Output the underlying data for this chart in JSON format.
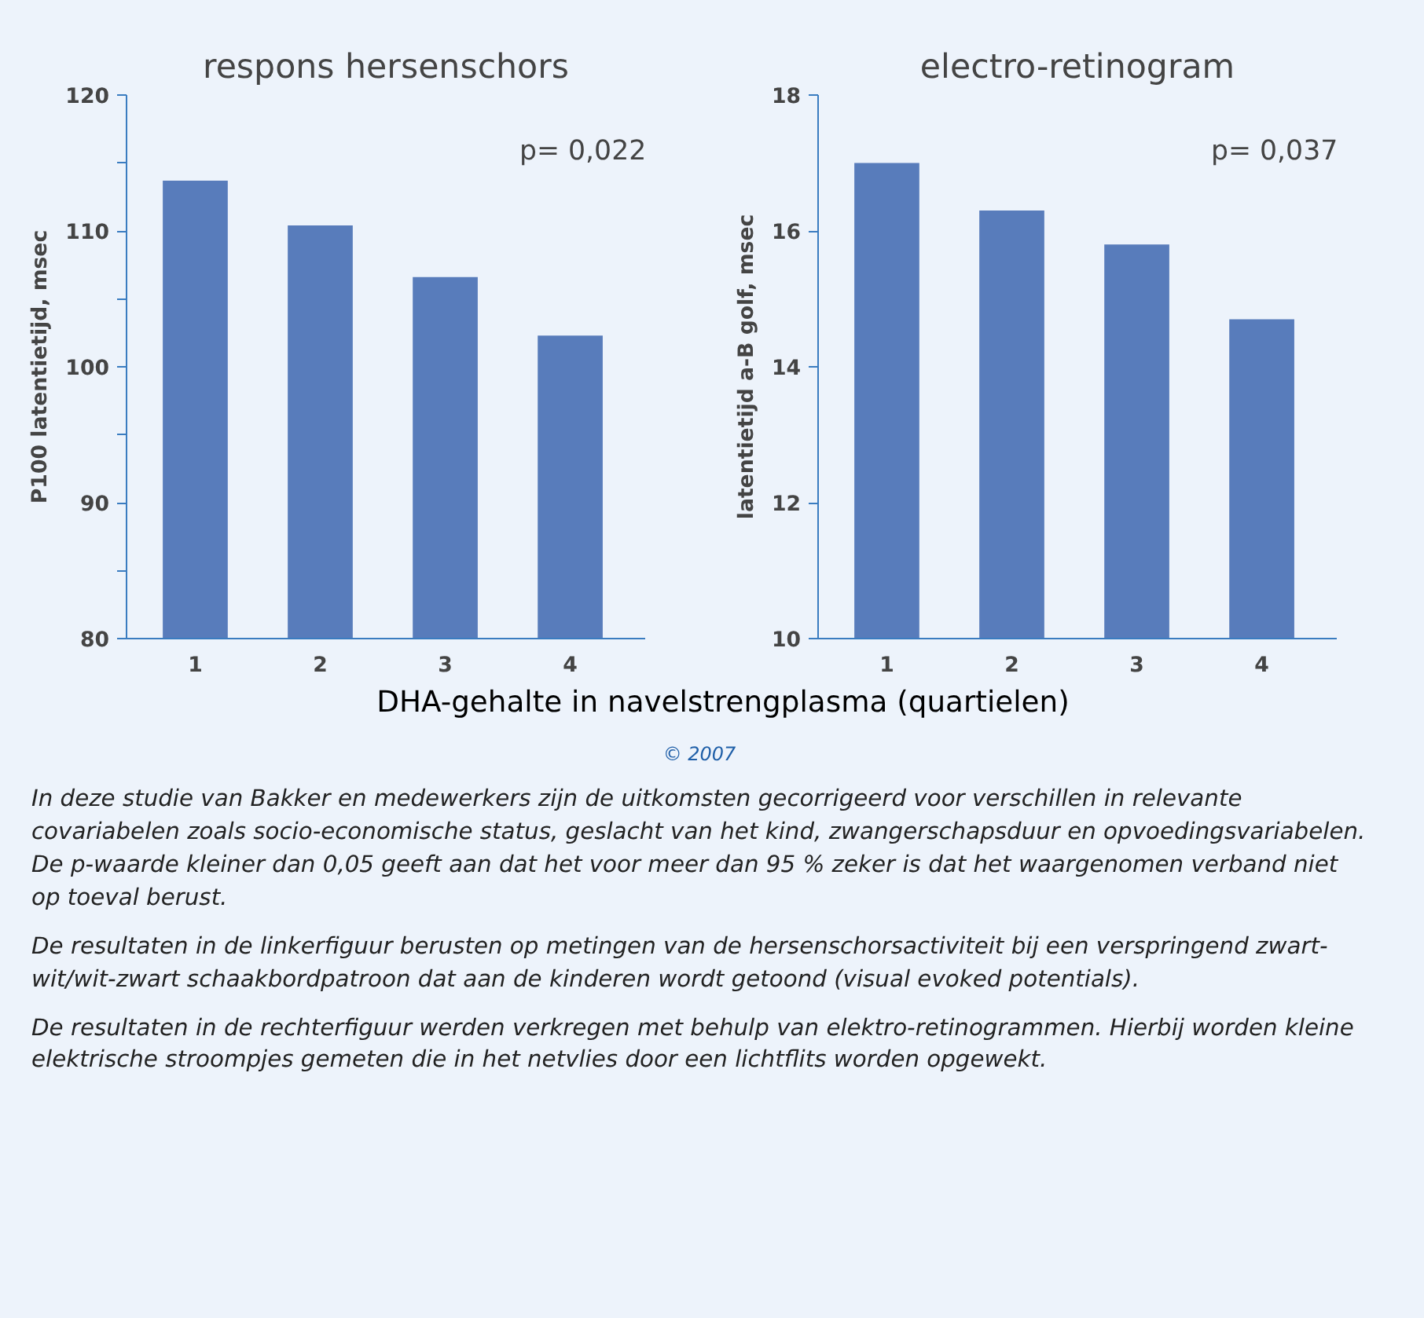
{
  "chart_data": [
    {
      "type": "bar",
      "title": "respons hersenschors",
      "ylabel": "P100 latentietijd, msec",
      "xlabel": "DHA-gehalte in navelstrengplasma (quartielen)",
      "categories": [
        "1",
        "2",
        "3",
        "4"
      ],
      "values": [
        113.7,
        110.4,
        106.6,
        102.3
      ],
      "color": "#587cbb",
      "ylim": [
        80,
        120
      ],
      "yticks": [
        80,
        {
          "value": 85,
          "label": null
        },
        90,
        {
          "value": 95,
          "label": null
        },
        100,
        {
          "value": 105,
          "label": null
        },
        110,
        {
          "value": 115,
          "label": null
        },
        120
      ],
      "annotations": [
        "p= 0,022"
      ],
      "grid": false
    },
    {
      "type": "bar",
      "title": "electro-retinogram",
      "ylabel": "latentietijd a-B golf, msec",
      "categories": [
        "1",
        "2",
        "3",
        "4"
      ],
      "values": [
        17.0,
        16.3,
        15.8,
        14.7
      ],
      "color": "#587cbb",
      "ylim": [
        10,
        18
      ],
      "yticks": [
        10,
        12,
        14,
        16,
        18
      ],
      "annotations": [
        "p= 0,037",
        "© 2007",
        "In deze studie van Bakker en medewerkers zijn de uitkomsten gecorrigeerd voor verschillen in relevante covariabelen zoals socio-economische status, geslacht van het kind, zwangerschapsduur en opvoedingsvariabelen. De p-waarde kleiner dan 0,05 geeft aan dat het voor meer dan 95 % zeker is dat het waargenomen verband niet op toeval berust.",
        "De resultaten in de linkerfiguur berusten op metingen van de hersenschorsactiviteit bij een verspringend zwart-wit/wit-zwart schaakbordpatroon dat aan de kinderen wordt getoond (visual evoked potentials).",
        "De resultaten in de rechterfiguur werden verkregen met behulp van elektro-retinogrammen. Hierbij worden kleine elektrische stroompjes gemeten die in het netvlies door een lichtflits worden opgewekt."
      ],
      "grid": false
    }
  ]
}
